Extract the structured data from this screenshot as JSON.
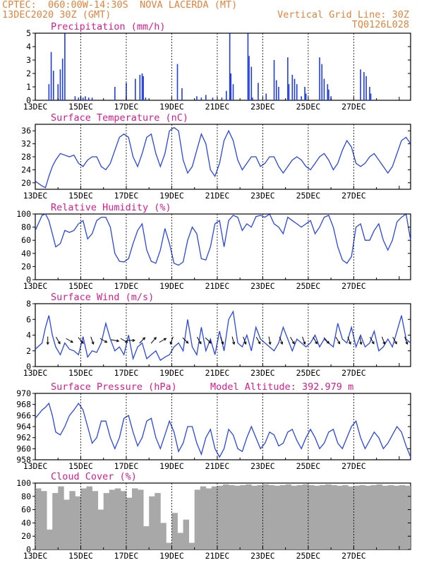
{
  "header": {
    "line1_left": "CPTEC:  060:00W-14:30S  NOVA LACERDA (MT)",
    "line2_left": "13DEC2020 30Z (GMT)",
    "line2_right": "Vertical Grid Line: 30Z",
    "line3_right": "TQ0126L028"
  },
  "x_axis": {
    "tick_labels": [
      "13DEC",
      "15DEC",
      "17DEC",
      "19DEC",
      "21DEC",
      "23DEC",
      "25DEC",
      "27DEC"
    ],
    "tick_days": [
      0,
      2,
      4,
      6,
      8,
      10,
      12,
      14
    ],
    "range_days": [
      0,
      16.5
    ]
  },
  "chart_data": [
    {
      "type": "bar",
      "title": "Precipitation (mm/h)",
      "ylim": [
        0,
        5
      ],
      "yticks": [
        0,
        1,
        2,
        3,
        4,
        5
      ],
      "x": [
        0.6,
        0.7,
        0.8,
        1.0,
        1.1,
        1.2,
        1.3,
        1.75,
        1.9,
        2.0,
        2.1,
        2.2,
        2.35,
        2.5,
        3.5,
        4.0,
        4.4,
        4.6,
        4.7,
        4.75,
        4.85,
        6.25,
        6.45,
        7.1,
        7.3,
        7.5,
        7.8,
        8.2,
        8.4,
        8.55,
        8.6,
        8.7,
        9.35,
        9.4,
        9.5,
        9.55,
        9.8,
        10.15,
        10.5,
        10.6,
        10.7,
        11.1,
        11.15,
        11.3,
        11.4,
        11.5,
        11.7,
        11.85,
        11.9,
        12.5,
        12.6,
        12.7,
        12.85,
        12.9,
        13.0,
        14.3,
        14.45,
        14.55,
        14.7,
        14.75
      ],
      "values": [
        1.2,
        3.6,
        2.2,
        1.2,
        2.3,
        3.1,
        5.0,
        0.3,
        0.2,
        0.3,
        0.2,
        0.3,
        0.2,
        0.2,
        1.0,
        1.3,
        1.6,
        1.9,
        2.0,
        1.8,
        0.2,
        2.7,
        0.9,
        0.3,
        0.2,
        0.4,
        0.2,
        0.2,
        0.7,
        5.0,
        2.0,
        1.2,
        5.0,
        3.3,
        2.5,
        0.2,
        1.3,
        0.5,
        3.0,
        1.5,
        1.0,
        3.2,
        1.2,
        1.9,
        1.6,
        1.2,
        0.3,
        1.0,
        0.5,
        3.2,
        2.7,
        1.6,
        1.2,
        0.8,
        0.3,
        2.3,
        2.1,
        1.8,
        1.0,
        0.5
      ]
    },
    {
      "type": "line",
      "title": "Surface Temperature (nC)",
      "ylim": [
        18,
        38
      ],
      "yticks": [
        20,
        24,
        28,
        32,
        36
      ],
      "x": [
        0,
        0.3,
        0.45,
        0.6,
        0.75,
        0.9,
        1.1,
        1.3,
        1.5,
        1.7,
        1.9,
        2.1,
        2.3,
        2.5,
        2.7,
        2.9,
        3.1,
        3.3,
        3.5,
        3.7,
        3.9,
        4.1,
        4.3,
        4.5,
        4.7,
        4.9,
        5.1,
        5.3,
        5.5,
        5.7,
        5.9,
        6.1,
        6.3,
        6.5,
        6.7,
        6.9,
        7.1,
        7.3,
        7.5,
        7.7,
        7.9,
        8.1,
        8.3,
        8.5,
        8.7,
        8.9,
        9.1,
        9.3,
        9.5,
        9.7,
        9.9,
        10.1,
        10.3,
        10.5,
        10.7,
        10.9,
        11.1,
        11.3,
        11.5,
        11.7,
        11.9,
        12.1,
        12.3,
        12.5,
        12.7,
        12.9,
        13.1,
        13.3,
        13.5,
        13.7,
        13.9,
        14.1,
        14.3,
        14.5,
        14.7,
        14.9,
        15.1,
        15.3,
        15.5,
        15.7,
        15.9,
        16.1,
        16.3,
        16.5
      ],
      "values": [
        20.5,
        19,
        18.5,
        22,
        25,
        27,
        29,
        28.5,
        28,
        28.5,
        26,
        25,
        27,
        28,
        28,
        25,
        24,
        26,
        30,
        34,
        35,
        34,
        28,
        25,
        29,
        34,
        35,
        29,
        25,
        29,
        36,
        37,
        36,
        27,
        23,
        25,
        30,
        35,
        32,
        24,
        22,
        26,
        33,
        36,
        33,
        27,
        24,
        26,
        28,
        28,
        25,
        26,
        28,
        28,
        25,
        23,
        25,
        27,
        28,
        27,
        25,
        24,
        26,
        28,
        29,
        27,
        24,
        26,
        30,
        33,
        31,
        26,
        25,
        26,
        28,
        29,
        27,
        25,
        23,
        25,
        29,
        33,
        34,
        32
      ]
    },
    {
      "type": "line",
      "title": "Relative Humidity (%)",
      "ylim": [
        0,
        100
      ],
      "yticks": [
        0,
        20,
        40,
        60,
        80,
        100
      ],
      "x": [
        0,
        0.3,
        0.45,
        0.6,
        0.75,
        0.9,
        1.1,
        1.3,
        1.5,
        1.7,
        1.9,
        2.1,
        2.3,
        2.5,
        2.7,
        2.9,
        3.1,
        3.3,
        3.5,
        3.7,
        3.9,
        4.1,
        4.3,
        4.5,
        4.7,
        4.9,
        5.1,
        5.3,
        5.5,
        5.7,
        5.9,
        6.1,
        6.3,
        6.5,
        6.7,
        6.9,
        7.1,
        7.3,
        7.5,
        7.7,
        7.9,
        8.1,
        8.3,
        8.5,
        8.7,
        8.9,
        9.1,
        9.3,
        9.5,
        9.7,
        9.9,
        10.1,
        10.3,
        10.5,
        10.7,
        10.9,
        11.1,
        11.3,
        11.5,
        11.7,
        11.9,
        12.1,
        12.3,
        12.5,
        12.7,
        12.9,
        13.1,
        13.3,
        13.5,
        13.7,
        13.9,
        14.1,
        14.3,
        14.5,
        14.7,
        14.9,
        15.1,
        15.3,
        15.5,
        15.7,
        15.9,
        16.1,
        16.3,
        16.5
      ],
      "values": [
        75,
        98,
        100,
        90,
        70,
        50,
        55,
        75,
        72,
        75,
        85,
        90,
        62,
        70,
        90,
        95,
        95,
        80,
        40,
        28,
        27,
        32,
        55,
        75,
        85,
        45,
        28,
        25,
        45,
        78,
        55,
        25,
        22,
        27,
        60,
        80,
        70,
        32,
        30,
        50,
        85,
        90,
        50,
        90,
        98,
        95,
        75,
        85,
        80,
        96,
        98,
        95,
        100,
        85,
        80,
        70,
        95,
        90,
        85,
        80,
        85,
        90,
        70,
        80,
        95,
        98,
        80,
        50,
        30,
        25,
        35,
        80,
        85,
        60,
        60,
        75,
        85,
        60,
        45,
        60,
        88,
        95,
        100,
        60
      ]
    },
    {
      "type": "line",
      "title": "Surface Wind (m/s)",
      "ylim": [
        0,
        8
      ],
      "yticks": [
        0,
        2,
        4,
        6,
        8
      ],
      "x": [
        0,
        0.3,
        0.45,
        0.6,
        0.75,
        0.9,
        1.1,
        1.3,
        1.5,
        1.7,
        1.9,
        2.1,
        2.3,
        2.5,
        2.7,
        2.9,
        3.1,
        3.3,
        3.5,
        3.7,
        3.9,
        4.1,
        4.3,
        4.5,
        4.7,
        4.9,
        5.1,
        5.3,
        5.5,
        5.7,
        5.9,
        6.1,
        6.3,
        6.5,
        6.7,
        6.9,
        7.1,
        7.3,
        7.5,
        7.7,
        7.9,
        8.1,
        8.3,
        8.5,
        8.7,
        8.9,
        9.1,
        9.3,
        9.5,
        9.7,
        9.9,
        10.1,
        10.3,
        10.5,
        10.7,
        10.9,
        11.1,
        11.3,
        11.5,
        11.7,
        11.9,
        12.1,
        12.3,
        12.5,
        12.7,
        12.9,
        13.1,
        13.3,
        13.5,
        13.7,
        13.9,
        14.1,
        14.3,
        14.5,
        14.7,
        14.9,
        15.1,
        15.3,
        15.5,
        15.7,
        15.9,
        16.1,
        16.3,
        16.5
      ],
      "values": [
        2.2,
        3.0,
        5.0,
        6.5,
        4.0,
        2.5,
        1.5,
        3.0,
        2.2,
        2.0,
        1.5,
        3.8,
        1.2,
        2.0,
        1.8,
        3.0,
        5.5,
        3.5,
        2.0,
        2.5,
        1.5,
        4.0,
        1.0,
        2.5,
        3.0,
        1.0,
        1.5,
        2.0,
        0.8,
        1.2,
        1.5,
        2.5,
        3.0,
        2.0,
        6.0,
        2.5,
        1.5,
        5.0,
        2.0,
        3.5,
        1.5,
        4.5,
        2.0,
        6.0,
        7.0,
        3.0,
        2.5,
        4.0,
        2.0,
        5.0,
        3.5,
        3.0,
        2.5,
        2.0,
        3.0,
        5.0,
        3.5,
        2.0,
        3.5,
        3.0,
        2.5,
        3.0,
        4.0,
        2.5,
        3.5,
        3.0,
        2.5,
        5.5,
        3.5,
        3.0,
        5.0,
        2.5,
        4.0,
        2.5,
        3.0,
        4.5,
        2.0,
        2.5,
        3.5,
        2.5,
        4.5,
        6.5,
        3.5,
        3.0
      ],
      "arrows": [
        {
          "x": 0.55,
          "dir_deg": 180
        },
        {
          "x": 1.0,
          "dir_deg": 150
        },
        {
          "x": 1.5,
          "dir_deg": 120
        },
        {
          "x": 2.0,
          "dir_deg": 140
        },
        {
          "x": 2.5,
          "dir_deg": 160
        },
        {
          "x": 3.0,
          "dir_deg": 120
        },
        {
          "x": 3.5,
          "dir_deg": 100
        },
        {
          "x": 3.9,
          "dir_deg": 120
        },
        {
          "x": 4.2,
          "dir_deg": 90
        },
        {
          "x": 4.7,
          "dir_deg": 45
        },
        {
          "x": 5.2,
          "dir_deg": 40
        },
        {
          "x": 5.6,
          "dir_deg": 60
        },
        {
          "x": 6.0,
          "dir_deg": 200
        },
        {
          "x": 6.6,
          "dir_deg": 135
        },
        {
          "x": 7.2,
          "dir_deg": 150
        },
        {
          "x": 7.6,
          "dir_deg": 135
        },
        {
          "x": 8.2,
          "dir_deg": 160
        },
        {
          "x": 8.7,
          "dir_deg": 165
        },
        {
          "x": 9.2,
          "dir_deg": 160
        },
        {
          "x": 9.8,
          "dir_deg": 150
        },
        {
          "x": 10.3,
          "dir_deg": 170
        },
        {
          "x": 10.8,
          "dir_deg": 160
        },
        {
          "x": 11.3,
          "dir_deg": 150
        },
        {
          "x": 11.8,
          "dir_deg": 160
        },
        {
          "x": 12.3,
          "dir_deg": 150
        },
        {
          "x": 12.8,
          "dir_deg": 140
        },
        {
          "x": 13.3,
          "dir_deg": 150
        },
        {
          "x": 13.8,
          "dir_deg": 160
        },
        {
          "x": 14.3,
          "dir_deg": 170
        },
        {
          "x": 14.8,
          "dir_deg": 150
        },
        {
          "x": 15.3,
          "dir_deg": 160
        },
        {
          "x": 15.8,
          "dir_deg": 150
        },
        {
          "x": 16.3,
          "dir_deg": 160
        }
      ]
    },
    {
      "type": "line",
      "title": "Surface Pressure (hPa)",
      "annotation": "Model Altitude: 392.979 m",
      "ylim": [
        958,
        970
      ],
      "yticks": [
        958,
        960,
        962,
        964,
        966,
        968,
        970
      ],
      "x": [
        0,
        0.3,
        0.45,
        0.6,
        0.75,
        0.9,
        1.1,
        1.3,
        1.5,
        1.7,
        1.9,
        2.1,
        2.3,
        2.5,
        2.7,
        2.9,
        3.1,
        3.3,
        3.5,
        3.7,
        3.9,
        4.1,
        4.3,
        4.5,
        4.7,
        4.9,
        5.1,
        5.3,
        5.5,
        5.7,
        5.9,
        6.1,
        6.3,
        6.5,
        6.7,
        6.9,
        7.1,
        7.3,
        7.5,
        7.7,
        7.9,
        8.1,
        8.3,
        8.5,
        8.7,
        8.9,
        9.1,
        9.3,
        9.5,
        9.7,
        9.9,
        10.1,
        10.3,
        10.5,
        10.7,
        10.9,
        11.1,
        11.3,
        11.5,
        11.7,
        11.9,
        12.1,
        12.3,
        12.5,
        12.7,
        12.9,
        13.1,
        13.3,
        13.5,
        13.7,
        13.9,
        14.1,
        14.3,
        14.5,
        14.7,
        14.9,
        15.1,
        15.3,
        15.5,
        15.7,
        15.9,
        16.1,
        16.3,
        16.5
      ],
      "values": [
        965.5,
        967,
        967.5,
        968.2,
        966,
        963,
        962.5,
        964,
        966,
        967,
        968.2,
        967,
        964,
        961,
        962,
        965,
        965,
        962,
        960,
        962,
        965.5,
        966,
        963,
        960.5,
        962,
        965,
        965.5,
        962,
        960,
        962.5,
        965,
        963,
        959.5,
        961,
        964,
        964,
        961,
        959,
        962,
        963.5,
        960,
        958.5,
        960,
        963.5,
        962.5,
        960,
        959.5,
        962,
        964,
        962,
        960,
        961,
        963,
        962.5,
        960.5,
        961,
        963,
        963.5,
        961.5,
        960,
        962,
        963.5,
        962,
        960,
        961,
        963,
        963.5,
        961,
        960,
        962,
        964,
        965,
        962,
        960,
        961.5,
        963,
        962,
        960,
        961,
        962.5,
        964,
        963,
        960.5,
        958.5
      ]
    },
    {
      "type": "bar",
      "title": "Cloud Cover (%)",
      "ylim": [
        0,
        100
      ],
      "yticks": [
        0,
        20,
        40,
        60,
        80,
        100
      ],
      "x": [
        0,
        0.25,
        0.5,
        0.75,
        1,
        1.25,
        1.5,
        1.75,
        2,
        2.25,
        2.5,
        2.75,
        3,
        3.25,
        3.5,
        3.75,
        4,
        4.25,
        4.5,
        4.75,
        5,
        5.25,
        5.5,
        5.75,
        6,
        6.25,
        6.5,
        6.75,
        7,
        7.25,
        7.5,
        7.75,
        8,
        8.25,
        8.5,
        8.75,
        9,
        9.25,
        9.5,
        9.75,
        10,
        10.25,
        10.5,
        10.75,
        11,
        11.25,
        11.5,
        11.75,
        12,
        12.25,
        12.5,
        12.75,
        13,
        13.25,
        13.5,
        13.75,
        14,
        14.25,
        14.5,
        14.75,
        15,
        15.25,
        15.5,
        15.75,
        16,
        16.25
      ],
      "values": [
        92,
        88,
        30,
        85,
        95,
        75,
        88,
        80,
        92,
        95,
        88,
        60,
        85,
        90,
        92,
        88,
        78,
        92,
        90,
        35,
        80,
        85,
        40,
        10,
        55,
        25,
        45,
        10,
        90,
        95,
        92,
        95,
        96,
        98,
        97,
        96,
        97,
        98,
        96,
        97,
        98,
        97,
        96,
        97,
        98,
        96,
        97,
        98,
        97,
        96,
        97,
        98,
        97,
        96,
        97,
        95,
        96,
        97,
        96,
        97,
        98,
        96,
        97,
        96,
        97,
        96
      ]
    }
  ]
}
